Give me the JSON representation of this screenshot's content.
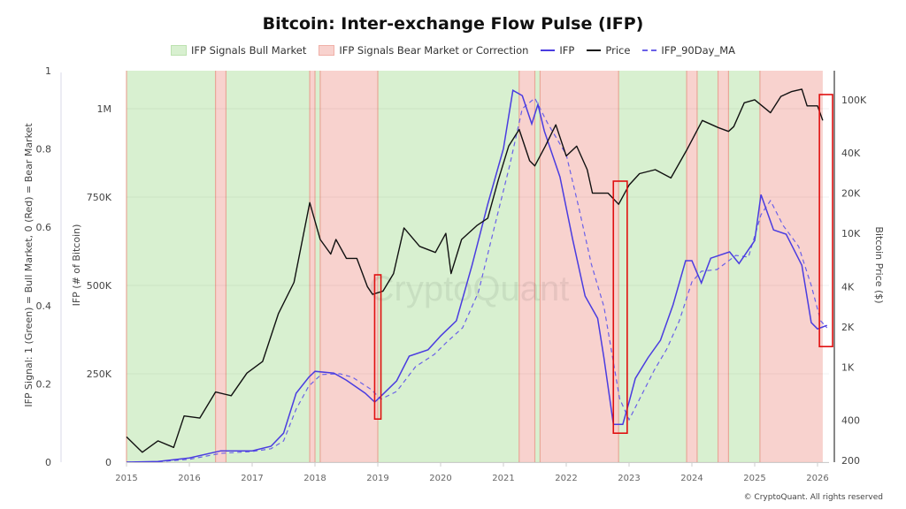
{
  "chart_data": {
    "type": "line",
    "title": "Bitcoin: Inter-exchange Flow Pulse (IFP)",
    "legend": [
      {
        "label": "IFP Signals Bull Market",
        "kind": "band",
        "color": "#d8f0d0"
      },
      {
        "label": "IFP Signals Bear Market or Correction",
        "kind": "band",
        "color": "#f8d2ce"
      },
      {
        "label": "IFP",
        "kind": "line",
        "color": "#4a3ce0"
      },
      {
        "label": "Price",
        "kind": "line",
        "color": "#111111"
      },
      {
        "label": "IFP_90Day_MA",
        "kind": "dashed",
        "color": "#6a60e8"
      }
    ],
    "legend_position": "top-center",
    "axes": {
      "signal": {
        "label": "IFP Signal: 1 (Green) = Bull Market, 0 (Red) = Bear Market",
        "range": [
          0,
          1
        ],
        "ticks": [
          "0",
          "0.2",
          "0.4",
          "0.6",
          "0.8",
          "1"
        ]
      },
      "ifp": {
        "label": "IFP (# of Bitcoin)",
        "range": [
          0,
          1100000
        ],
        "ticks": [
          {
            "v": 0,
            "t": "0"
          },
          {
            "v": 250000,
            "t": "250K"
          },
          {
            "v": 500000,
            "t": "500K"
          },
          {
            "v": 750000,
            "t": "750K"
          },
          {
            "v": 1000000,
            "t": "1M"
          }
        ]
      },
      "price": {
        "label": "Bitcoin Price ($)",
        "scale": "log",
        "range": [
          200,
          130000
        ],
        "ticks": [
          {
            "v": 200,
            "t": "200"
          },
          {
            "v": 400,
            "t": "400"
          },
          {
            "v": 1000,
            "t": "1K"
          },
          {
            "v": 2000,
            "t": "2K"
          },
          {
            "v": 4000,
            "t": "4K"
          },
          {
            "v": 10000,
            "t": "10K"
          },
          {
            "v": 20000,
            "t": "20K"
          },
          {
            "v": 40000,
            "t": "40K"
          },
          {
            "v": 100000,
            "t": "100K"
          }
        ]
      },
      "x": {
        "ticks": [
          "2015",
          "2016",
          "2017",
          "2018",
          "2019",
          "2020",
          "2021",
          "2022",
          "2023",
          "2024",
          "2025",
          "2026"
        ]
      }
    },
    "grid": true,
    "signal_bands": [
      {
        "from": "2015-01",
        "to": "2016-06",
        "signal": 1
      },
      {
        "from": "2016-06",
        "to": "2016-08",
        "signal": 0
      },
      {
        "from": "2016-08",
        "to": "2017-12",
        "signal": 1
      },
      {
        "from": "2017-12",
        "to": "2018-01",
        "signal": 0
      },
      {
        "from": "2018-01",
        "to": "2018-02",
        "signal": 1
      },
      {
        "from": "2018-02",
        "to": "2019-01",
        "signal": 0
      },
      {
        "from": "2019-01",
        "to": "2021-04",
        "signal": 1
      },
      {
        "from": "2021-04",
        "to": "2021-07",
        "signal": 0
      },
      {
        "from": "2021-07",
        "to": "2021-08",
        "signal": 1
      },
      {
        "from": "2021-08",
        "to": "2022-11",
        "signal": 0
      },
      {
        "from": "2022-11",
        "to": "2023-12",
        "signal": 1
      },
      {
        "from": "2023-12",
        "to": "2024-02",
        "signal": 0
      },
      {
        "from": "2024-02",
        "to": "2024-06",
        "signal": 1
      },
      {
        "from": "2024-06",
        "to": "2024-08",
        "signal": 0
      },
      {
        "from": "2024-08",
        "to": "2025-02",
        "signal": 1
      },
      {
        "from": "2025-02",
        "to": "2026-02",
        "signal": 0
      }
    ],
    "price": {
      "x": [
        "2015-01",
        "2015-04",
        "2015-07",
        "2015-10",
        "2015-12",
        "2016-03",
        "2016-06",
        "2016-09",
        "2016-12",
        "2017-03",
        "2017-06",
        "2017-09",
        "2017-12",
        "2018-02",
        "2018-04",
        "2018-05",
        "2018-07",
        "2018-09",
        "2018-11",
        "2018-12",
        "2019-02",
        "2019-04",
        "2019-06",
        "2019-09",
        "2019-12",
        "2020-02",
        "2020-03",
        "2020-05",
        "2020-08",
        "2020-10",
        "2020-12",
        "2021-02",
        "2021-04",
        "2021-06",
        "2021-07",
        "2021-09",
        "2021-11",
        "2022-01",
        "2022-03",
        "2022-05",
        "2022-06",
        "2022-09",
        "2022-11",
        "2023-01",
        "2023-03",
        "2023-06",
        "2023-09",
        "2023-12",
        "2024-03",
        "2024-06",
        "2024-08",
        "2024-09",
        "2024-11",
        "2025-01",
        "2025-04",
        "2025-06",
        "2025-08",
        "2025-10",
        "2025-11",
        "2026-01",
        "2026-02"
      ],
      "values": [
        300,
        230,
        280,
        250,
        430,
        415,
        650,
        610,
        900,
        1100,
        2500,
        4300,
        17000,
        9000,
        7000,
        9000,
        6500,
        6500,
        4000,
        3500,
        3700,
        5000,
        11000,
        8000,
        7200,
        10000,
        5000,
        9000,
        11500,
        13000,
        25000,
        45000,
        60000,
        35000,
        32000,
        45000,
        65000,
        38000,
        45000,
        30000,
        20000,
        20000,
        16500,
        23000,
        28000,
        30000,
        26000,
        42000,
        70000,
        62000,
        58000,
        63000,
        95000,
        100000,
        80000,
        106000,
        115000,
        120000,
        90000,
        90000,
        70000
      ]
    },
    "ifp": {
      "x": [
        2015.0,
        2015.5,
        2016.0,
        2016.5,
        2017.0,
        2017.3,
        2017.5,
        2017.7,
        2017.9,
        2018.0,
        2018.3,
        2018.5,
        2018.8,
        2018.95,
        2019.0,
        2019.3,
        2019.5,
        2019.8,
        2020.0,
        2020.25,
        2020.5,
        2020.75,
        2021.0,
        2021.15,
        2021.3,
        2021.45,
        2021.55,
        2021.65,
        2021.9,
        2022.1,
        2022.3,
        2022.5,
        2022.6,
        2022.75,
        2022.9,
        2023.0,
        2023.1,
        2023.3,
        2023.5,
        2023.7,
        2023.9,
        2024.0,
        2024.15,
        2024.3,
        2024.6,
        2024.75,
        2025.0,
        2025.1,
        2025.3,
        2025.5,
        2025.75,
        2025.9,
        2026.0,
        2026.15
      ],
      "values": [
        0,
        2000,
        12000,
        32000,
        32000,
        45000,
        82000,
        195000,
        240000,
        257000,
        252000,
        232000,
        195000,
        170000,
        178000,
        230000,
        300000,
        318000,
        357000,
        400000,
        557000,
        730000,
        887000,
        1052000,
        1037000,
        957000,
        1012000,
        937000,
        807000,
        632000,
        470000,
        407000,
        295000,
        107000,
        107000,
        170000,
        237000,
        295000,
        345000,
        445000,
        570000,
        570000,
        507000,
        577000,
        595000,
        562000,
        627000,
        757000,
        657000,
        645000,
        557000,
        395000,
        377000,
        387000
      ]
    },
    "ifp_90day_ma": {
      "x": [
        2015.0,
        2015.5,
        2016.0,
        2016.5,
        2017.0,
        2017.3,
        2017.5,
        2017.7,
        2017.9,
        2018.1,
        2018.4,
        2018.6,
        2018.9,
        2019.05,
        2019.3,
        2019.6,
        2019.9,
        2020.1,
        2020.35,
        2020.6,
        2020.85,
        2021.1,
        2021.3,
        2021.5,
        2021.7,
        2022.0,
        2022.2,
        2022.4,
        2022.6,
        2022.85,
        2023.0,
        2023.2,
        2023.4,
        2023.6,
        2023.8,
        2024.0,
        2024.15,
        2024.4,
        2024.7,
        2024.9,
        2025.1,
        2025.25,
        2025.45,
        2025.7,
        2025.9,
        2026.05,
        2026.15
      ],
      "values": [
        0,
        1000,
        8000,
        25000,
        30000,
        38000,
        60000,
        150000,
        215000,
        248000,
        250000,
        240000,
        205000,
        178000,
        200000,
        270000,
        305000,
        340000,
        380000,
        480000,
        660000,
        840000,
        1000000,
        1030000,
        960000,
        870000,
        720000,
        560000,
        440000,
        180000,
        120000,
        190000,
        260000,
        320000,
        400000,
        510000,
        540000,
        545000,
        585000,
        580000,
        700000,
        740000,
        670000,
        610000,
        500000,
        400000,
        380000
      ]
    },
    "highlight_boxes": [
      {
        "from": 2018.95,
        "to": 2019.05,
        "ifp_range": [
          122000,
          530000
        ]
      },
      {
        "from": 2022.75,
        "to": 2022.97,
        "ifp_range": [
          82000,
          795000
        ]
      },
      {
        "from": 2026.03,
        "to": 2026.24,
        "ifp_range": [
          327000,
          1040000
        ]
      }
    ],
    "watermark": "CryptoQuant"
  },
  "footer": "© CryptoQuant. All rights reserved"
}
